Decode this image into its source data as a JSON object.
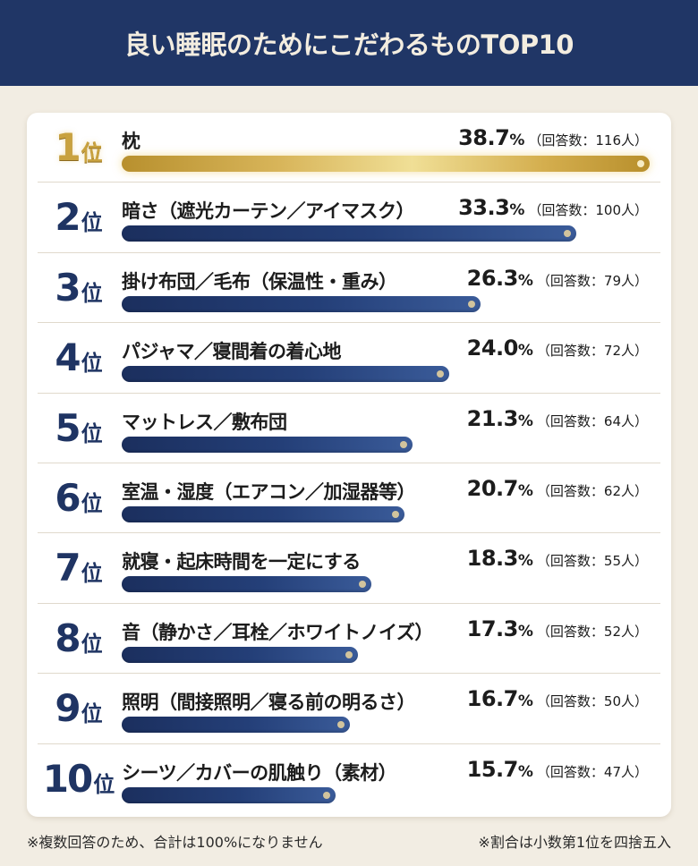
{
  "header": {
    "title": "良い睡眠のためにこだわるものTOP10"
  },
  "rank_suffix": "位",
  "items": [
    {
      "rank": "1",
      "label": "枕",
      "pct": "38.7",
      "pct_sign": "%",
      "count": "（回答数：116人）"
    },
    {
      "rank": "2",
      "label": "暗さ（遮光カーテン／アイマスク）",
      "pct": "33.3",
      "pct_sign": "%",
      "count": "（回答数：100人）"
    },
    {
      "rank": "3",
      "label": "掛け布団／毛布（保温性・重み）",
      "pct": "26.3",
      "pct_sign": "%",
      "count": "（回答数：79人）"
    },
    {
      "rank": "4",
      "label": "パジャマ／寝間着の着心地",
      "pct": "24.0",
      "pct_sign": "%",
      "count": "（回答数：72人）"
    },
    {
      "rank": "5",
      "label": "マットレス／敷布団",
      "pct": "21.3",
      "pct_sign": "%",
      "count": "（回答数：64人）"
    },
    {
      "rank": "6",
      "label": "室温・湿度（エアコン／加湿器等）",
      "pct": "20.7",
      "pct_sign": "%",
      "count": "（回答数：62人）"
    },
    {
      "rank": "7",
      "label": "就寝・起床時間を一定にする",
      "pct": "18.3",
      "pct_sign": "%",
      "count": "（回答数：55人）"
    },
    {
      "rank": "8",
      "label": "音（静かさ／耳栓／ホワイトノイズ）",
      "pct": "17.3",
      "pct_sign": "%",
      "count": "（回答数：52人）"
    },
    {
      "rank": "9",
      "label": "照明（間接照明／寝る前の明るさ）",
      "pct": "16.7",
      "pct_sign": "%",
      "count": "（回答数：50人）"
    },
    {
      "rank": "10",
      "label": "シーツ／カバーの肌触り（素材）",
      "pct": "15.7",
      "pct_sign": "%",
      "count": "（回答数：47人）"
    }
  ],
  "footnotes": {
    "left": "※複数回答のため、合計は100%になりません",
    "right": "※割合は小数第1位を四捨五入"
  },
  "colors": {
    "header_bg": "#203666",
    "page_bg": "#f2ede3",
    "bar_navy": "#243f78",
    "bar_gold": "#d8b55a",
    "rank_navy": "#1f3463"
  },
  "chart_data": {
    "type": "bar",
    "orientation": "horizontal",
    "title": "良い睡眠のためにこだわるものTOP10",
    "categories": [
      "枕",
      "暗さ（遮光カーテン／アイマスク）",
      "掛け布団／毛布（保温性・重み）",
      "パジャマ／寝間着の着心地",
      "マットレス／敷布団",
      "室温・湿度（エアコン／加湿器等）",
      "就寝・起床時間を一定にする",
      "音（静かさ／耳栓／ホワイトノイズ）",
      "照明（間接照明／寝る前の明るさ）",
      "シーツ／カバーの肌触り（素材）"
    ],
    "series": [
      {
        "name": "割合(%)",
        "values": [
          38.7,
          33.3,
          26.3,
          24.0,
          21.3,
          20.7,
          18.3,
          17.3,
          16.7,
          15.7
        ]
      },
      {
        "name": "回答数(人)",
        "values": [
          116,
          100,
          79,
          72,
          64,
          62,
          55,
          52,
          50,
          47
        ]
      }
    ],
    "xlabel": "",
    "ylabel": "",
    "grid": false,
    "legend": "none",
    "annotations": [
      "※複数回答のため、合計は100%になりません",
      "※割合は小数第1位を四捨五入"
    ]
  }
}
